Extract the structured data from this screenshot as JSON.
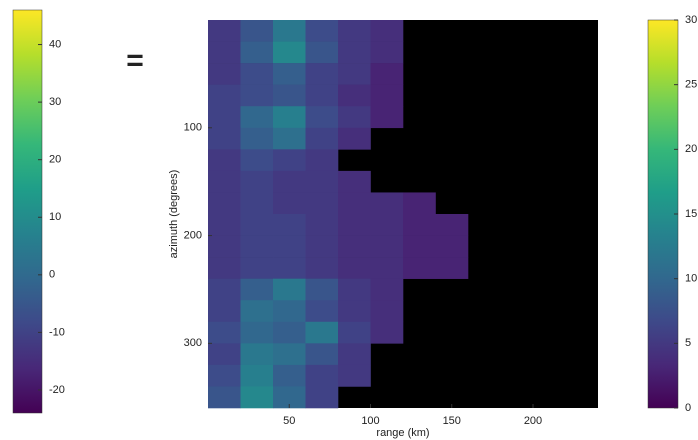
{
  "chart_data": {
    "type": "heatmap",
    "xlabel": "range (km)",
    "ylabel": "azimuth (degrees)",
    "x_edges": [
      0,
      20,
      40,
      60,
      80,
      100,
      120,
      140,
      160,
      180,
      200,
      220,
      240
    ],
    "y_edges": [
      0,
      20,
      40,
      60,
      80,
      100,
      120,
      140,
      160,
      180,
      200,
      220,
      240,
      260,
      280,
      300,
      320,
      340,
      360
    ],
    "z": [
      [
        5,
        8,
        12,
        7,
        5,
        4,
        null,
        null,
        null,
        null,
        null,
        null
      ],
      [
        5,
        9,
        14,
        8,
        5,
        4,
        null,
        null,
        null,
        null,
        null,
        null
      ],
      [
        5,
        7,
        9,
        6,
        5,
        3,
        null,
        null,
        null,
        null,
        null,
        null
      ],
      [
        6,
        7,
        8,
        6,
        4,
        3,
        null,
        null,
        null,
        null,
        null,
        null
      ],
      [
        6,
        10,
        13,
        7,
        5,
        3,
        null,
        null,
        null,
        null,
        null,
        null
      ],
      [
        6,
        9,
        11,
        6,
        4,
        null,
        null,
        null,
        null,
        null,
        null,
        null
      ],
      [
        5,
        7,
        6,
        5,
        null,
        null,
        null,
        null,
        null,
        null,
        null,
        null
      ],
      [
        5,
        6,
        5,
        5,
        4,
        null,
        null,
        null,
        null,
        null,
        null,
        null
      ],
      [
        5,
        6,
        5,
        5,
        4,
        4,
        3,
        null,
        null,
        null,
        null,
        null
      ],
      [
        5,
        6,
        6,
        5,
        4,
        4,
        3,
        3,
        null,
        null,
        null,
        null
      ],
      [
        5,
        6,
        6,
        5,
        4,
        4,
        3,
        3,
        null,
        null,
        null,
        null
      ],
      [
        5,
        6,
        6,
        5,
        4,
        4,
        3,
        3,
        null,
        null,
        null,
        null
      ],
      [
        6,
        9,
        12,
        8,
        5,
        4,
        null,
        null,
        null,
        null,
        null,
        null
      ],
      [
        6,
        11,
        10,
        7,
        5,
        4,
        null,
        null,
        null,
        null,
        null,
        null
      ],
      [
        7,
        10,
        9,
        12,
        6,
        4,
        null,
        null,
        null,
        null,
        null,
        null
      ],
      [
        6,
        12,
        11,
        8,
        5,
        null,
        null,
        null,
        null,
        null,
        null,
        null
      ],
      [
        7,
        13,
        9,
        6,
        5,
        null,
        null,
        null,
        null,
        null,
        null,
        null
      ],
      [
        8,
        14,
        10,
        6,
        null,
        null,
        null,
        null,
        null,
        null,
        null,
        null
      ]
    ],
    "xlim": [
      0,
      240
    ],
    "xticks": [
      50,
      100,
      150,
      200
    ],
    "ylim": [
      0,
      360
    ],
    "yticks": [
      100,
      200,
      300
    ],
    "y_inverted": true,
    "null_color": "#000000",
    "colormap": [
      "#440154",
      "#482878",
      "#3e4989",
      "#31688e",
      "#26828e",
      "#1f9e89",
      "#35b779",
      "#6ece58",
      "#b5de2b",
      "#fde725"
    ],
    "colorbar": {
      "lim": [
        0,
        30
      ],
      "ticks": [
        0,
        5,
        10,
        15,
        20,
        25,
        30
      ]
    }
  },
  "left_colorbar": {
    "lim": [
      -24,
      46
    ],
    "ticks": [
      -20,
      -10,
      0,
      10,
      20,
      30,
      40
    ]
  },
  "annotation": "="
}
